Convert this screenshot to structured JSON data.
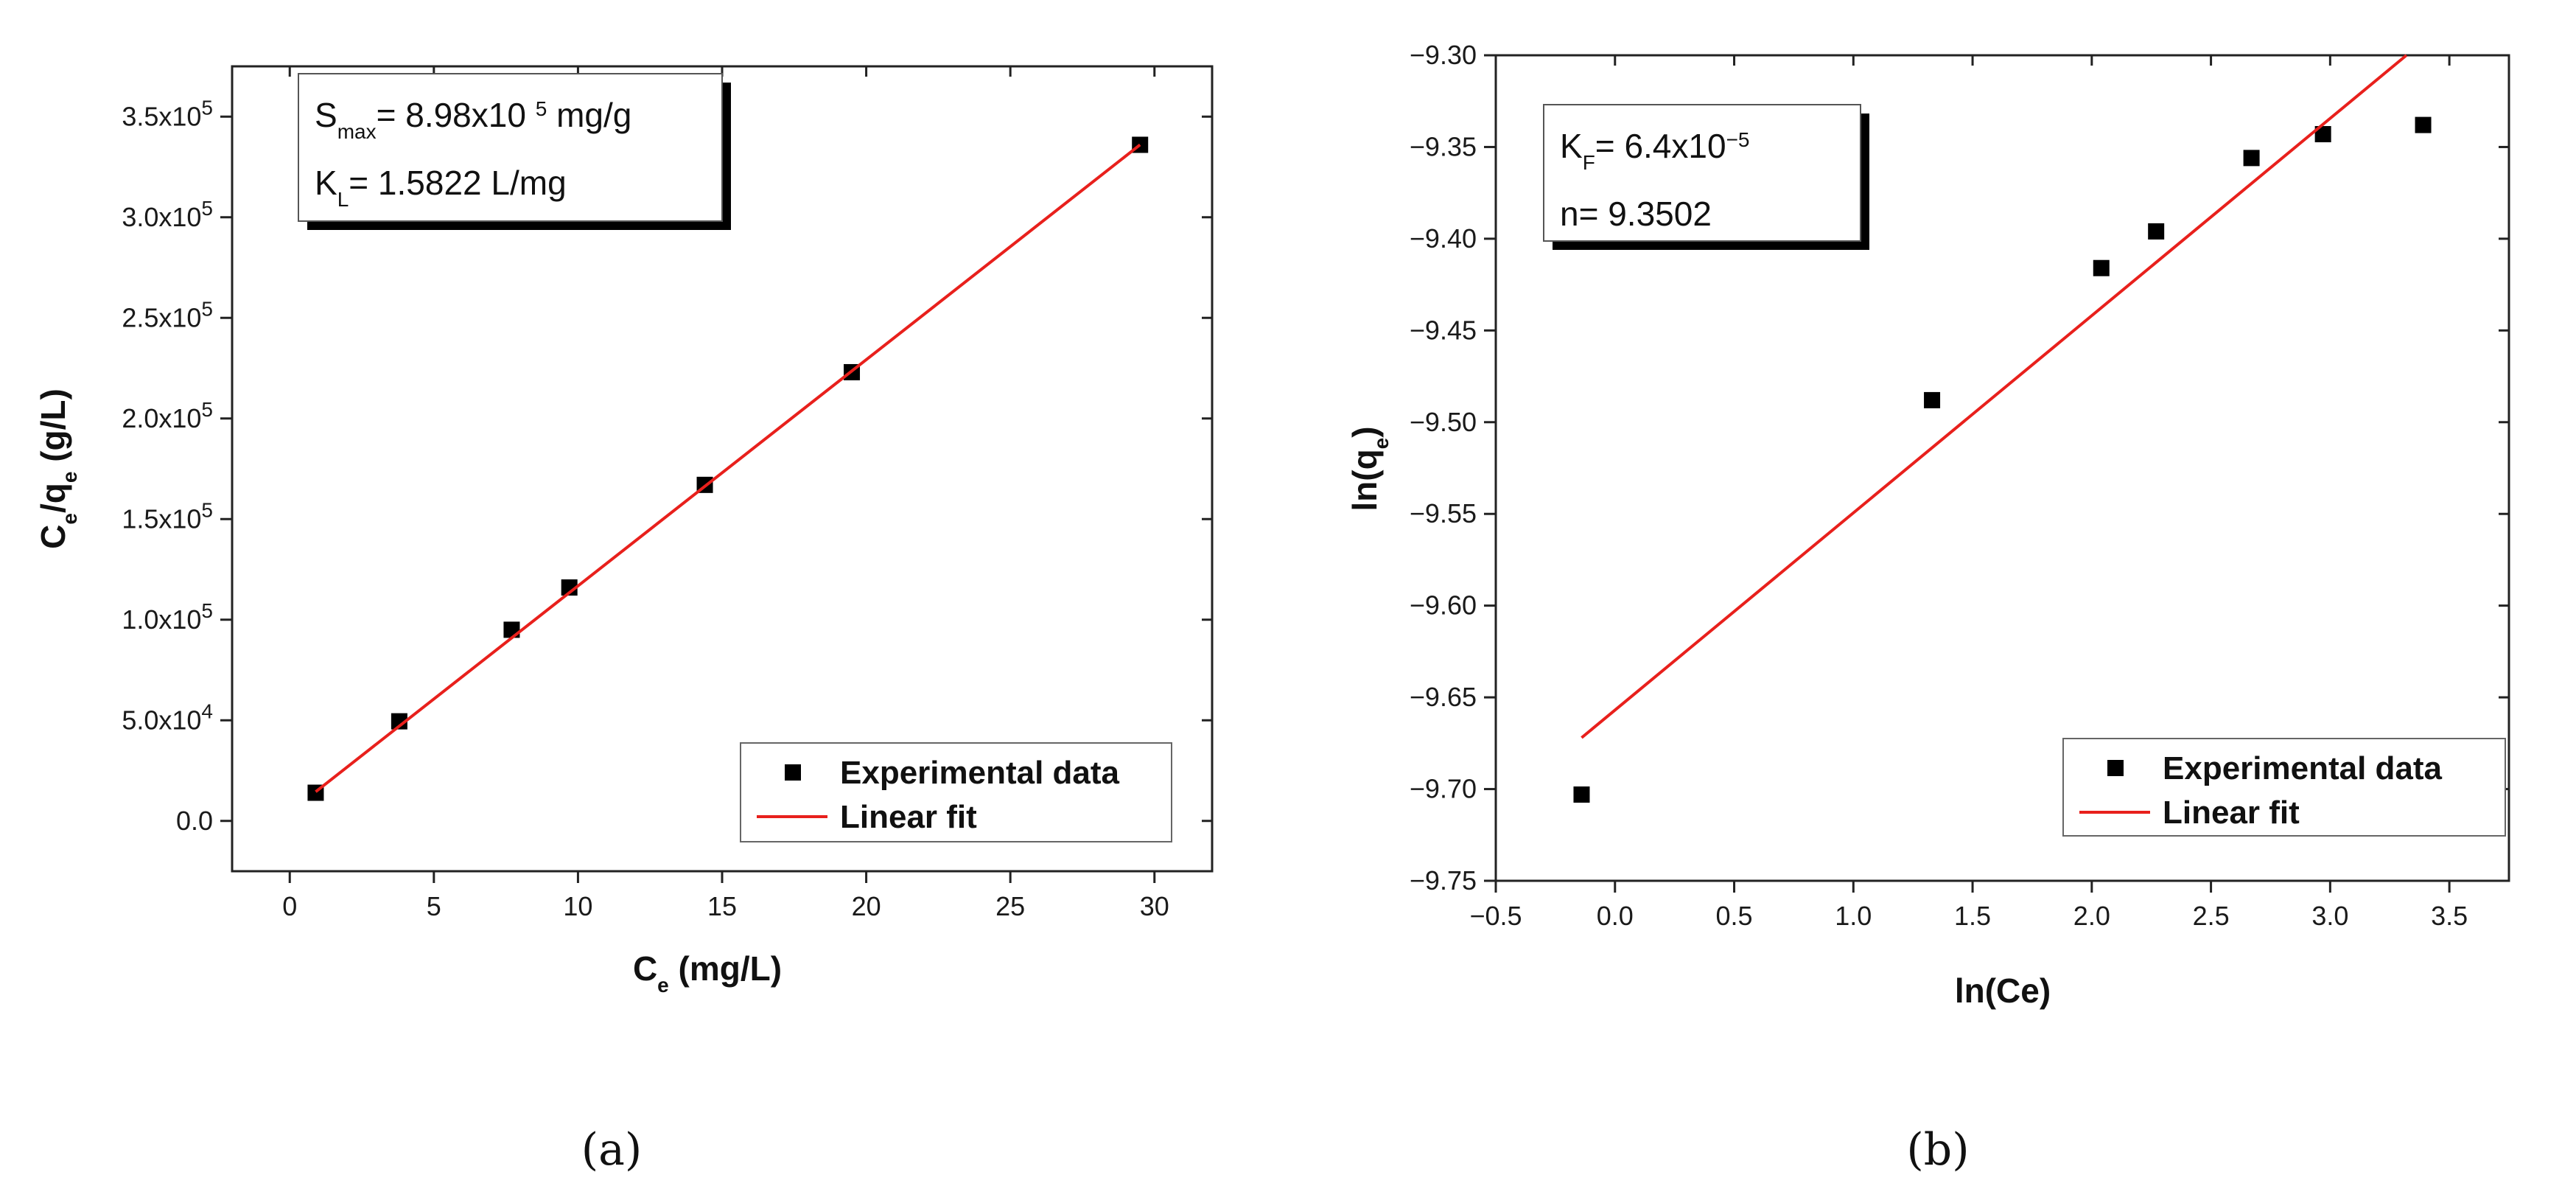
{
  "chart_data": [
    {
      "id": "a",
      "type": "scatter",
      "panel_label": "(a)",
      "xlabel": "C",
      "xlabel_sub": "e",
      "xlabel_rest": " (mg/L)",
      "ylabel_parts": [
        "C",
        "e",
        "/q",
        "e",
        " (g/L)"
      ],
      "xlim": [
        -2,
        32
      ],
      "ylim": [
        -25000,
        375000
      ],
      "x_ticks": [
        0,
        5,
        10,
        15,
        20,
        25,
        30
      ],
      "x_tick_labels": [
        "0",
        "5",
        "10",
        "15",
        "20",
        "25",
        "30"
      ],
      "y_ticks": [
        0,
        50000,
        100000,
        150000,
        200000,
        250000,
        300000,
        350000
      ],
      "y_tick_labels": [
        {
          "text": "0.0",
          "exp": ""
        },
        {
          "text": "5.0x10",
          "exp": "4"
        },
        {
          "text": "1.0x10",
          "exp": "5"
        },
        {
          "text": "1.5x10",
          "exp": "5"
        },
        {
          "text": "2.0x10",
          "exp": "5"
        },
        {
          "text": "2.5x10",
          "exp": "5"
        },
        {
          "text": "3.0x10",
          "exp": "5"
        },
        {
          "text": "3.5x10",
          "exp": "5"
        }
      ],
      "series": [
        {
          "name": "Experimental data",
          "kind": "scatter",
          "color": "#000000",
          "x": [
            0.9,
            3.8,
            7.7,
            9.7,
            14.4,
            19.5,
            29.5
          ],
          "y": [
            14000,
            49500,
            95000,
            116000,
            167000,
            223000,
            336000
          ]
        },
        {
          "name": "Linear fit",
          "kind": "line",
          "color": "#e8201c",
          "x": [
            0.9,
            29.5
          ],
          "y": [
            14500,
            336000
          ]
        }
      ],
      "legend": [
        {
          "label": "Experimental data",
          "marker": "square"
        },
        {
          "label": "Linear fit",
          "marker": "line"
        }
      ],
      "annotation": [
        {
          "parts": [
            [
              "S",
              ""
            ],
            [
              "max",
              "sub"
            ],
            [
              "= 8.98x10 ",
              ""
            ],
            [
              "5",
              "sup"
            ],
            [
              " mg/g",
              ""
            ]
          ]
        },
        {
          "parts": [
            [
              "K",
              ""
            ],
            [
              "L",
              "sub"
            ],
            [
              "= 1.5822 L/mg",
              ""
            ]
          ]
        }
      ]
    },
    {
      "id": "b",
      "type": "scatter",
      "panel_label": "(b)",
      "xlabel": "ln(Ce)",
      "ylabel_parts": [
        "ln(q",
        "e",
        ")"
      ],
      "xlim": [
        -0.5,
        3.75
      ],
      "ylim": [
        -9.75,
        -9.3
      ],
      "x_ticks": [
        -0.5,
        0.0,
        0.5,
        1.0,
        1.5,
        2.0,
        2.5,
        3.0,
        3.5
      ],
      "x_tick_labels": [
        "−0.5",
        "0.0",
        "0.5",
        "1.0",
        "1.5",
        "2.0",
        "2.5",
        "3.0",
        "3.5"
      ],
      "y_ticks": [
        -9.3,
        -9.35,
        -9.4,
        -9.45,
        -9.5,
        -9.55,
        -9.6,
        -9.65,
        -9.7,
        -9.75
      ],
      "y_tick_labels": [
        "−9.30",
        "−9.35",
        "−9.40",
        "−9.45",
        "−9.50",
        "−9.55",
        "−9.60",
        "−9.65",
        "−9.70",
        "−9.75"
      ],
      "series": [
        {
          "name": "Experimental data",
          "kind": "scatter",
          "color": "#000000",
          "x": [
            -0.14,
            1.33,
            2.04,
            2.27,
            2.67,
            2.97,
            3.39
          ],
          "y": [
            -9.703,
            -9.488,
            -9.416,
            -9.396,
            -9.356,
            -9.343,
            -9.338
          ]
        },
        {
          "name": "Linear fit",
          "kind": "line",
          "color": "#e8201c",
          "x": [
            -0.14,
            3.32
          ],
          "y": [
            -9.672,
            -9.3
          ]
        }
      ],
      "legend": [
        {
          "label": "Experimental data",
          "marker": "square"
        },
        {
          "label": "Linear fit",
          "marker": "line"
        }
      ],
      "annotation": [
        {
          "parts": [
            [
              "K",
              ""
            ],
            [
              "F",
              "sub"
            ],
            [
              "= 6.4x10",
              ""
            ],
            [
              "−5",
              "sup"
            ]
          ]
        },
        {
          "parts": [
            [
              "n= 9.3502",
              ""
            ]
          ]
        }
      ]
    }
  ]
}
